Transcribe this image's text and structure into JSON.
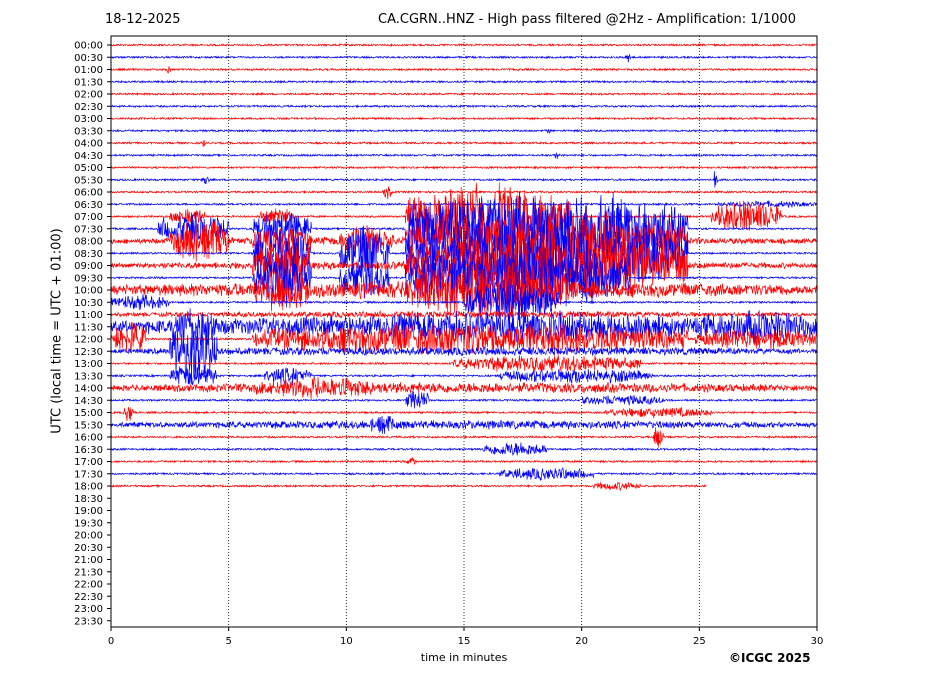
{
  "header": {
    "date": "18-12-2025",
    "title": "CA.CGRN..HNZ - High pass filtered @2Hz - Amplification: 1/1000"
  },
  "credit": "©ICGC 2025",
  "colors": {
    "even_row": "#ff0000",
    "odd_row": "#0000ff",
    "gridline": "#000000"
  },
  "chart_data": {
    "type": "line",
    "title": "CA.CGRN..HNZ - High pass filtered @2Hz - Amplification: 1/1000",
    "xlabel": "time in minutes",
    "ylabel": "UTC (local time = UTC + 01:00)",
    "xlim": [
      0,
      30
    ],
    "x_ticks": [
      0,
      5,
      10,
      15,
      20,
      25,
      30
    ],
    "vertical_gridlines_at": [
      5,
      10,
      15,
      20,
      25
    ],
    "row_labels": [
      "00:00",
      "00:30",
      "01:00",
      "01:30",
      "02:00",
      "02:30",
      "03:00",
      "03:30",
      "04:00",
      "04:30",
      "05:00",
      "05:30",
      "06:00",
      "06:30",
      "07:00",
      "07:30",
      "08:00",
      "08:30",
      "09:00",
      "09:30",
      "10:00",
      "10:30",
      "11:00",
      "11:30",
      "12:00",
      "12:30",
      "13:00",
      "13:30",
      "14:00",
      "14:30",
      "15:00",
      "15:30",
      "16:00",
      "16:30",
      "17:00",
      "17:30",
      "18:00",
      "18:30",
      "19:00",
      "19:30",
      "20:00",
      "20:30",
      "21:00",
      "21:30",
      "22:00",
      "22:30",
      "23:00",
      "23:30"
    ],
    "last_row_with_data": "18:00",
    "last_row_end_minute": 25.3,
    "bursts": [
      {
        "row": "00:30",
        "x": [
          21.8,
          22.1
        ],
        "amp": 0.5
      },
      {
        "row": "01:00",
        "x": [
          2.3,
          2.6
        ],
        "amp": 0.5
      },
      {
        "row": "03:30",
        "x": [
          18.5,
          18.7
        ],
        "amp": 0.3
      },
      {
        "row": "04:00",
        "x": [
          3.8,
          4.1
        ],
        "amp": 0.4
      },
      {
        "row": "04:30",
        "x": [
          18.8,
          19.1
        ],
        "amp": 0.5
      },
      {
        "row": "05:30",
        "x": [
          3.8,
          4.2
        ],
        "amp": 0.6
      },
      {
        "row": "05:30",
        "x": [
          25.6,
          25.8
        ],
        "amp": 1.9
      },
      {
        "row": "06:00",
        "x": [
          11.5,
          12.0
        ],
        "amp": 0.6
      },
      {
        "row": "06:30",
        "x": [
          25.8,
          30
        ],
        "amp": 0.3
      },
      {
        "row": "07:00",
        "x": [
          2.5,
          4.0
        ],
        "amp": 0.8
      },
      {
        "row": "07:00",
        "x": [
          6.3,
          7.8
        ],
        "amp": 0.8
      },
      {
        "row": "07:00",
        "x": [
          12.5,
          19.5
        ],
        "amp": 3.0
      },
      {
        "row": "07:00",
        "x": [
          25.5,
          28.5
        ],
        "amp": 1.5
      },
      {
        "row": "07:30",
        "x": [
          2.0,
          5.0
        ],
        "amp": 1.5
      },
      {
        "row": "07:30",
        "x": [
          6.0,
          8.5
        ],
        "amp": 1.5
      },
      {
        "row": "07:30",
        "x": [
          12.5,
          24.5
        ],
        "amp": 3.5
      },
      {
        "row": "08:00",
        "x": [
          0,
          30
        ],
        "amp": 0.4
      },
      {
        "row": "08:00",
        "x": [
          2.5,
          5.0
        ],
        "amp": 2.0
      },
      {
        "row": "08:00",
        "x": [
          6.0,
          8.5
        ],
        "amp": 1.5
      },
      {
        "row": "08:00",
        "x": [
          9.7,
          12.0
        ],
        "amp": 1.5
      },
      {
        "row": "08:00",
        "x": [
          12.5,
          24.5
        ],
        "amp": 3.0
      },
      {
        "row": "08:30",
        "x": [
          6.0,
          8.5
        ],
        "amp": 2.5
      },
      {
        "row": "08:30",
        "x": [
          9.7,
          11.8
        ],
        "amp": 2.5
      },
      {
        "row": "08:30",
        "x": [
          12.5,
          24.5
        ],
        "amp": 3.5
      },
      {
        "row": "09:00",
        "x": [
          0,
          30
        ],
        "amp": 0.4
      },
      {
        "row": "09:00",
        "x": [
          6.0,
          8.5
        ],
        "amp": 2.5
      },
      {
        "row": "09:00",
        "x": [
          12.5,
          24.5
        ],
        "amp": 3.0
      },
      {
        "row": "09:30",
        "x": [
          6.0,
          8.5
        ],
        "amp": 2.5
      },
      {
        "row": "09:30",
        "x": [
          9.7,
          11.8
        ],
        "amp": 2.0
      },
      {
        "row": "09:30",
        "x": [
          12.5,
          22.0
        ],
        "amp": 3.0
      },
      {
        "row": "10:00",
        "x": [
          0,
          30
        ],
        "amp": 0.8
      },
      {
        "row": "10:00",
        "x": [
          6.0,
          8.5
        ],
        "amp": 2.0
      },
      {
        "row": "10:00",
        "x": [
          12.5,
          19.5
        ],
        "amp": 2.5
      },
      {
        "row": "10:30",
        "x": [
          0,
          2.5
        ],
        "amp": 0.7
      },
      {
        "row": "10:30",
        "x": [
          15.0,
          19.0
        ],
        "amp": 2.0
      },
      {
        "row": "11:00",
        "x": [
          0,
          30
        ],
        "amp": 0.3
      },
      {
        "row": "11:30",
        "x": [
          0,
          30
        ],
        "amp": 1.0
      },
      {
        "row": "11:30",
        "x": [
          10.0,
          24.5
        ],
        "amp": 1.5
      },
      {
        "row": "11:30",
        "x": [
          24.8,
          30
        ],
        "amp": 1.5
      },
      {
        "row": "11:30",
        "x": [
          2.5,
          4.5
        ],
        "amp": 2.0
      },
      {
        "row": "12:00",
        "x": [
          0,
          1.5
        ],
        "amp": 1.5
      },
      {
        "row": "12:00",
        "x": [
          6.0,
          24.5
        ],
        "amp": 1.5
      },
      {
        "row": "12:00",
        "x": [
          24.8,
          30
        ],
        "amp": 1.0
      },
      {
        "row": "12:30",
        "x": [
          2.5,
          4.5
        ],
        "amp": 3.0
      },
      {
        "row": "12:30",
        "x": [
          0,
          30
        ],
        "amp": 0.4
      },
      {
        "row": "13:00",
        "x": [
          14.5,
          22.5
        ],
        "amp": 0.8
      },
      {
        "row": "13:30",
        "x": [
          2.5,
          4.5
        ],
        "amp": 1.0
      },
      {
        "row": "13:30",
        "x": [
          6.5,
          8.5
        ],
        "amp": 0.8
      },
      {
        "row": "13:30",
        "x": [
          16.5,
          23.0
        ],
        "amp": 0.7
      },
      {
        "row": "14:00",
        "x": [
          0,
          30
        ],
        "amp": 0.5
      },
      {
        "row": "14:00",
        "x": [
          6.0,
          11.5
        ],
        "amp": 1.0
      },
      {
        "row": "14:30",
        "x": [
          12.5,
          13.5
        ],
        "amp": 1.0
      },
      {
        "row": "14:30",
        "x": [
          20.0,
          23.5
        ],
        "amp": 0.5
      },
      {
        "row": "15:00",
        "x": [
          0.5,
          1.0
        ],
        "amp": 1.0
      },
      {
        "row": "15:00",
        "x": [
          21.0,
          25.5
        ],
        "amp": 0.5
      },
      {
        "row": "15:30",
        "x": [
          0,
          30
        ],
        "amp": 0.4
      },
      {
        "row": "15:30",
        "x": [
          11.0,
          12.0
        ],
        "amp": 1.0
      },
      {
        "row": "16:00",
        "x": [
          23.0,
          23.5
        ],
        "amp": 1.5
      },
      {
        "row": "16:30",
        "x": [
          15.8,
          18.5
        ],
        "amp": 0.7
      },
      {
        "row": "17:00",
        "x": [
          12.5,
          13.0
        ],
        "amp": 0.5
      },
      {
        "row": "17:30",
        "x": [
          16.5,
          20.5
        ],
        "amp": 0.6
      },
      {
        "row": "18:00",
        "x": [
          20.5,
          22.5
        ],
        "amp": 0.4
      }
    ]
  }
}
